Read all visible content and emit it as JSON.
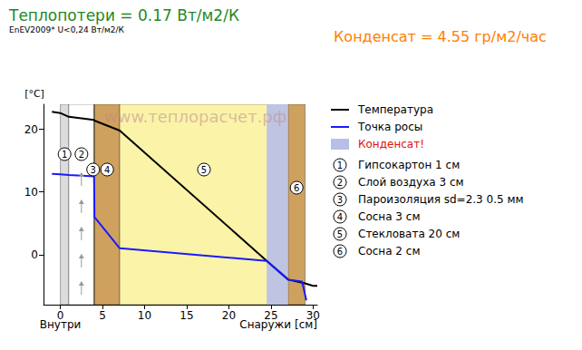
{
  "chart_data": {
    "type": "line",
    "title": "Теплопотери = 0.17 Вт/м2/К",
    "subtitle": "EnEV2009* U<0,24 Вт/м2/К",
    "annotation": "Конденсат = 4.55 гр/м2/час",
    "watermark": "www.теплорасчет.рф",
    "y_label": "[°C]",
    "x_label_left": "Внутри",
    "x_label": "Снаружи [см]",
    "xlim": [
      -2,
      30.5
    ],
    "xticks": [
      0,
      5,
      10,
      15,
      20,
      25,
      30
    ],
    "ylim": [
      -8,
      24
    ],
    "yticks": [
      0,
      10,
      20
    ],
    "grid": false,
    "legend": "right",
    "series": [
      {
        "name": "Температура",
        "color": "#000000",
        "x": [
          -1,
          0,
          1,
          4,
          4.05,
          7.05,
          24.5,
          27.05,
          29.05,
          30,
          30.5
        ],
        "values": [
          22.8,
          22.6,
          22.0,
          21.5,
          21.4,
          19.8,
          -1.0,
          -4.0,
          -4.6,
          -5.0,
          -5.0
        ]
      },
      {
        "name": "Точка росы",
        "color": "#1a1aff",
        "x": [
          -1,
          0,
          1,
          4,
          4.05,
          7.05,
          24.5,
          27.05,
          28.7,
          29.2
        ],
        "values": [
          12.9,
          12.8,
          12.7,
          12.5,
          6.0,
          1.0,
          -1.0,
          -4.0,
          -4.3,
          -7.3
        ]
      }
    ],
    "layers": [
      {
        "label": "1",
        "name": "Гипсокартон 1 см",
        "from": 0,
        "to": 1,
        "color": "#dcdcdc"
      },
      {
        "label": "2",
        "name": "Слой воздуха 3 см",
        "from": 1,
        "to": 4,
        "color": "#ffffff"
      },
      {
        "label": "3",
        "name": "Пароизоляция sd=2.3 0.5 мм",
        "from": 4,
        "to": 4.05,
        "color": "#222222"
      },
      {
        "label": "4",
        "name": "Сосна 3 см",
        "from": 4.05,
        "to": 7.05,
        "color": "#cfa15e"
      },
      {
        "label": "5",
        "name": "Стекловата 20 см",
        "from": 7.05,
        "to": 27.05,
        "color": "#fbf3a8"
      },
      {
        "label": "6",
        "name": "Сосна 2 см",
        "from": 27.05,
        "to": 29.05,
        "color": "#cfa15e"
      }
    ],
    "condensate": {
      "name": "Конденсат!",
      "from": 24.5,
      "to": 27.05,
      "color": "#b7bfe8"
    }
  }
}
